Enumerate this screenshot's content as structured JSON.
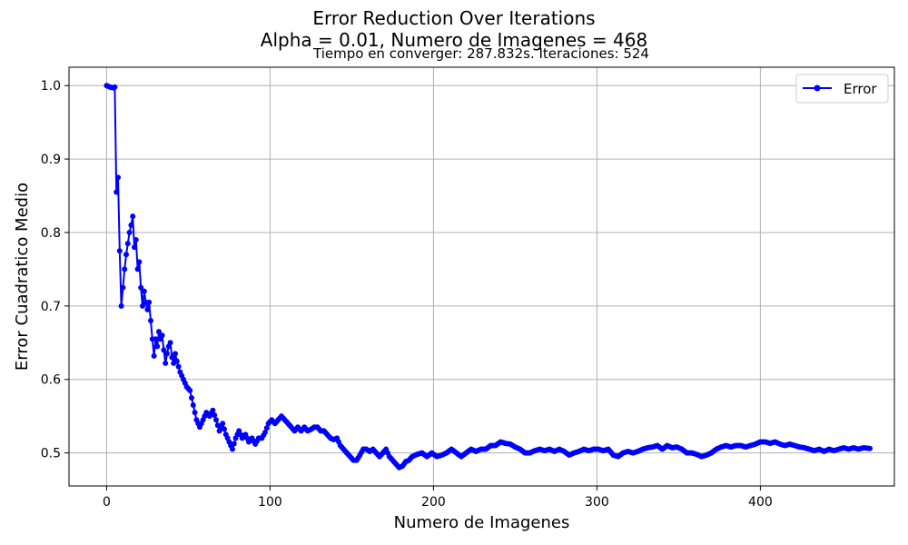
{
  "chart_data": {
    "type": "line",
    "title_line1": "Error Reduction Over Iterations",
    "title_line2": "Alpha = 0.01, Numero de Imagenes = 468",
    "subtitle": "Tiempo en converger: 287.832s.  Iteraciones: 524",
    "xlabel": "Numero de Imagenes",
    "ylabel": "Error Cuadratico Medio",
    "xlim": [
      -23,
      482
    ],
    "ylim": [
      0.455,
      1.025
    ],
    "xticks": [
      0,
      100,
      200,
      300,
      400
    ],
    "yticks": [
      0.5,
      0.6,
      0.7,
      0.8,
      0.9,
      1.0
    ],
    "xtick_labels": [
      "0",
      "100",
      "200",
      "300",
      "400"
    ],
    "ytick_labels": [
      "0.5",
      "0.6",
      "0.7",
      "0.8",
      "0.9",
      "1.0"
    ],
    "grid": true,
    "legend_position": "top-right",
    "series": [
      {
        "name": "Error",
        "color": "#0000ff",
        "marker": "circle",
        "anchors": [
          [
            0,
            1.0
          ],
          [
            2,
            0.998
          ],
          [
            4,
            0.997
          ],
          [
            5,
            0.998
          ],
          [
            6,
            0.855
          ],
          [
            7,
            0.875
          ],
          [
            8,
            0.775
          ],
          [
            9,
            0.7
          ],
          [
            10,
            0.725
          ],
          [
            11,
            0.75
          ],
          [
            12,
            0.77
          ],
          [
            13,
            0.785
          ],
          [
            14,
            0.8
          ],
          [
            15,
            0.81
          ],
          [
            16,
            0.822
          ],
          [
            17,
            0.78
          ],
          [
            18,
            0.79
          ],
          [
            19,
            0.75
          ],
          [
            20,
            0.76
          ],
          [
            21,
            0.725
          ],
          [
            22,
            0.7
          ],
          [
            23,
            0.72
          ],
          [
            24,
            0.705
          ],
          [
            25,
            0.695
          ],
          [
            26,
            0.705
          ],
          [
            27,
            0.68
          ],
          [
            28,
            0.655
          ],
          [
            29,
            0.632
          ],
          [
            30,
            0.655
          ],
          [
            31,
            0.645
          ],
          [
            32,
            0.665
          ],
          [
            33,
            0.655
          ],
          [
            34,
            0.66
          ],
          [
            35,
            0.64
          ],
          [
            36,
            0.622
          ],
          [
            37,
            0.635
          ],
          [
            38,
            0.645
          ],
          [
            39,
            0.65
          ],
          [
            40,
            0.63
          ],
          [
            41,
            0.622
          ],
          [
            42,
            0.635
          ],
          [
            43,
            0.625
          ],
          [
            45,
            0.61
          ],
          [
            47,
            0.6
          ],
          [
            49,
            0.59
          ],
          [
            51,
            0.585
          ],
          [
            53,
            0.565
          ],
          [
            55,
            0.545
          ],
          [
            57,
            0.535
          ],
          [
            59,
            0.545
          ],
          [
            61,
            0.555
          ],
          [
            63,
            0.55
          ],
          [
            65,
            0.558
          ],
          [
            67,
            0.545
          ],
          [
            69,
            0.53
          ],
          [
            71,
            0.54
          ],
          [
            73,
            0.525
          ],
          [
            75,
            0.515
          ],
          [
            77,
            0.505
          ],
          [
            79,
            0.52
          ],
          [
            81,
            0.53
          ],
          [
            83,
            0.52
          ],
          [
            85,
            0.525
          ],
          [
            87,
            0.515
          ],
          [
            89,
            0.52
          ],
          [
            91,
            0.512
          ],
          [
            93,
            0.52
          ],
          [
            95,
            0.52
          ],
          [
            97,
            0.528
          ],
          [
            99,
            0.54
          ],
          [
            101,
            0.545
          ],
          [
            103,
            0.54
          ],
          [
            105,
            0.545
          ],
          [
            107,
            0.55
          ],
          [
            109,
            0.545
          ],
          [
            111,
            0.54
          ],
          [
            113,
            0.535
          ],
          [
            115,
            0.53
          ],
          [
            117,
            0.535
          ],
          [
            119,
            0.53
          ],
          [
            121,
            0.535
          ],
          [
            123,
            0.53
          ],
          [
            125,
            0.532
          ],
          [
            127,
            0.535
          ],
          [
            129,
            0.535
          ],
          [
            131,
            0.53
          ],
          [
            133,
            0.53
          ],
          [
            135,
            0.525
          ],
          [
            137,
            0.52
          ],
          [
            139,
            0.518
          ],
          [
            141,
            0.52
          ],
          [
            143,
            0.51
          ],
          [
            145,
            0.505
          ],
          [
            147,
            0.5
          ],
          [
            149,
            0.495
          ],
          [
            151,
            0.49
          ],
          [
            153,
            0.49
          ],
          [
            155,
            0.497
          ],
          [
            157,
            0.505
          ],
          [
            159,
            0.505
          ],
          [
            161,
            0.502
          ],
          [
            163,
            0.505
          ],
          [
            165,
            0.5
          ],
          [
            167,
            0.495
          ],
          [
            169,
            0.5
          ],
          [
            171,
            0.505
          ],
          [
            173,
            0.495
          ],
          [
            175,
            0.49
          ],
          [
            177,
            0.485
          ],
          [
            179,
            0.48
          ],
          [
            181,
            0.482
          ],
          [
            183,
            0.488
          ],
          [
            185,
            0.49
          ],
          [
            187,
            0.495
          ],
          [
            190,
            0.498
          ],
          [
            193,
            0.5
          ],
          [
            196,
            0.495
          ],
          [
            199,
            0.5
          ],
          [
            202,
            0.495
          ],
          [
            205,
            0.497
          ],
          [
            208,
            0.5
          ],
          [
            211,
            0.505
          ],
          [
            214,
            0.5
          ],
          [
            217,
            0.495
          ],
          [
            220,
            0.5
          ],
          [
            223,
            0.505
          ],
          [
            226,
            0.502
          ],
          [
            229,
            0.505
          ],
          [
            232,
            0.505
          ],
          [
            235,
            0.51
          ],
          [
            238,
            0.51
          ],
          [
            241,
            0.515
          ],
          [
            244,
            0.513
          ],
          [
            247,
            0.512
          ],
          [
            250,
            0.508
          ],
          [
            253,
            0.505
          ],
          [
            256,
            0.5
          ],
          [
            259,
            0.5
          ],
          [
            262,
            0.503
          ],
          [
            265,
            0.505
          ],
          [
            268,
            0.503
          ],
          [
            271,
            0.505
          ],
          [
            274,
            0.502
          ],
          [
            277,
            0.505
          ],
          [
            280,
            0.502
          ],
          [
            283,
            0.497
          ],
          [
            286,
            0.5
          ],
          [
            289,
            0.502
          ],
          [
            292,
            0.505
          ],
          [
            295,
            0.503
          ],
          [
            298,
            0.505
          ],
          [
            301,
            0.505
          ],
          [
            304,
            0.503
          ],
          [
            307,
            0.505
          ],
          [
            310,
            0.497
          ],
          [
            313,
            0.495
          ],
          [
            316,
            0.5
          ],
          [
            319,
            0.502
          ],
          [
            322,
            0.5
          ],
          [
            325,
            0.502
          ],
          [
            328,
            0.505
          ],
          [
            331,
            0.507
          ],
          [
            334,
            0.508
          ],
          [
            337,
            0.51
          ],
          [
            340,
            0.505
          ],
          [
            343,
            0.51
          ],
          [
            346,
            0.507
          ],
          [
            349,
            0.508
          ],
          [
            352,
            0.505
          ],
          [
            355,
            0.5
          ],
          [
            358,
            0.5
          ],
          [
            361,
            0.498
          ],
          [
            364,
            0.495
          ],
          [
            367,
            0.497
          ],
          [
            370,
            0.5
          ],
          [
            373,
            0.505
          ],
          [
            376,
            0.508
          ],
          [
            379,
            0.51
          ],
          [
            382,
            0.508
          ],
          [
            385,
            0.51
          ],
          [
            388,
            0.51
          ],
          [
            391,
            0.508
          ],
          [
            394,
            0.51
          ],
          [
            397,
            0.512
          ],
          [
            400,
            0.515
          ],
          [
            403,
            0.515
          ],
          [
            406,
            0.513
          ],
          [
            409,
            0.515
          ],
          [
            412,
            0.512
          ],
          [
            415,
            0.51
          ],
          [
            418,
            0.512
          ],
          [
            421,
            0.51
          ],
          [
            424,
            0.508
          ],
          [
            427,
            0.507
          ],
          [
            430,
            0.505
          ],
          [
            433,
            0.503
          ],
          [
            436,
            0.505
          ],
          [
            439,
            0.502
          ],
          [
            442,
            0.505
          ],
          [
            445,
            0.503
          ],
          [
            448,
            0.505
          ],
          [
            451,
            0.507
          ],
          [
            454,
            0.505
          ],
          [
            457,
            0.507
          ],
          [
            460,
            0.505
          ],
          [
            463,
            0.507
          ],
          [
            467,
            0.506
          ]
        ]
      }
    ]
  }
}
